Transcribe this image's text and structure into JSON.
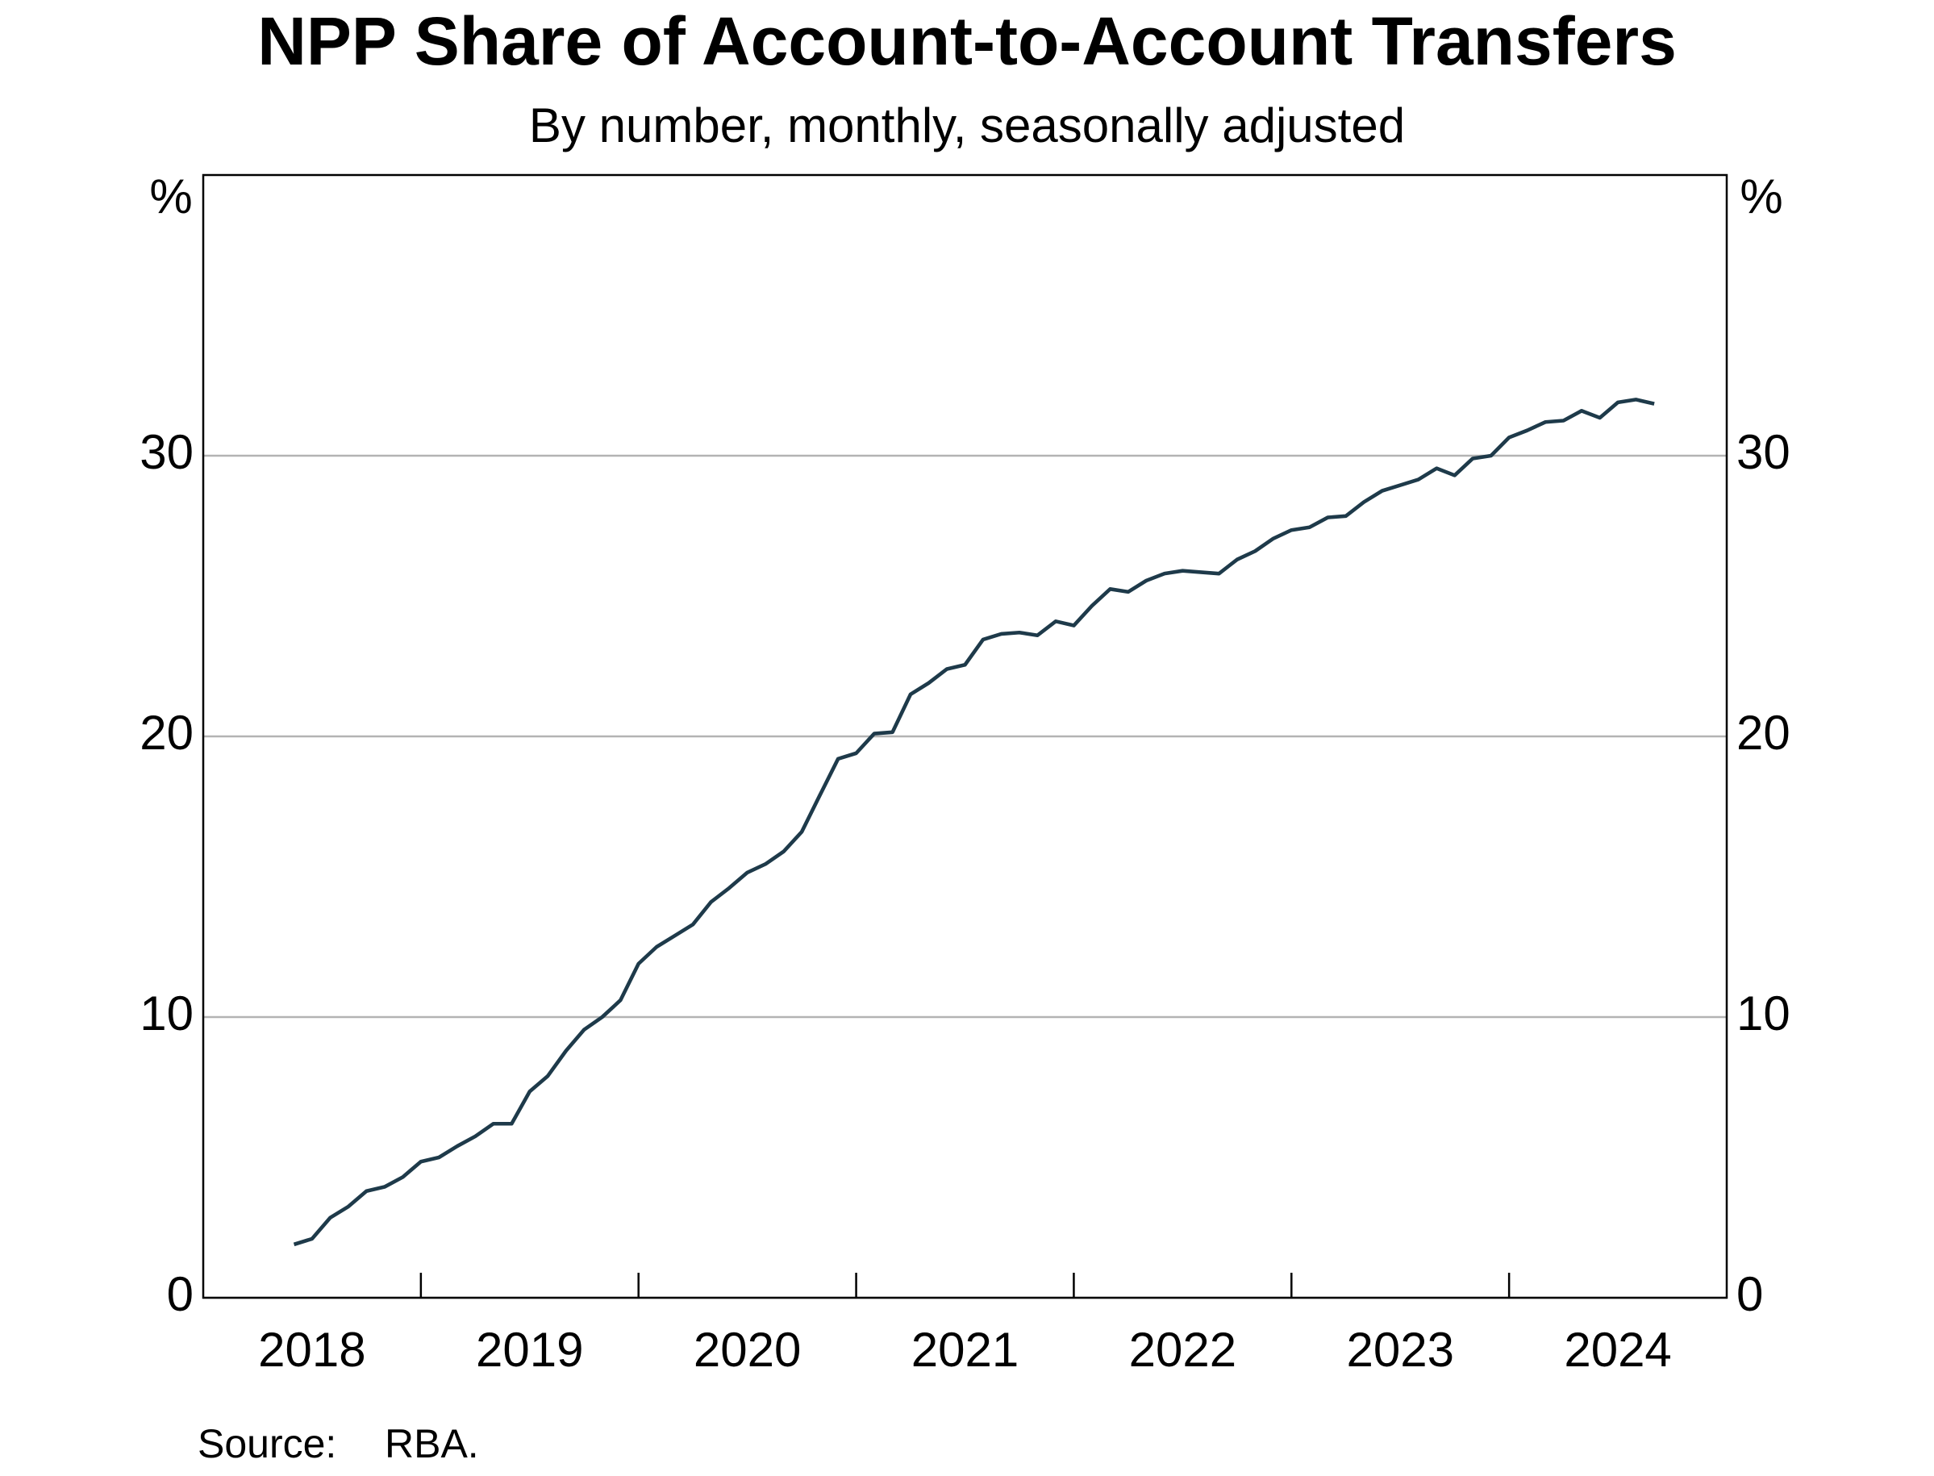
{
  "chart_data": {
    "type": "line",
    "title": "NPP Share of Account-to-Account Transfers",
    "subtitle": "By number, monthly, seasonally adjusted",
    "y_unit": "%",
    "y2_unit": "%",
    "source_label": "Source:",
    "source": "RBA.",
    "xlim": [
      2018,
      2025
    ],
    "xtick_marks": [
      2019,
      2020,
      2021,
      2022,
      2023,
      2024
    ],
    "xticks": [
      {
        "value": 2018.5,
        "label": "2018"
      },
      {
        "value": 2019.5,
        "label": "2019"
      },
      {
        "value": 2020.5,
        "label": "2020"
      },
      {
        "value": 2021.5,
        "label": "2021"
      },
      {
        "value": 2022.5,
        "label": "2022"
      },
      {
        "value": 2023.5,
        "label": "2023"
      },
      {
        "value": 2024.5,
        "label": "2024"
      }
    ],
    "ylim": [
      0,
      40
    ],
    "yticks": [
      0,
      10,
      20,
      30
    ],
    "y2lim": [
      0,
      40
    ],
    "y2ticks": [
      0,
      10,
      20,
      30
    ],
    "grid": true,
    "x": [
      2018.417,
      2018.5,
      2018.583,
      2018.667,
      2018.75,
      2018.833,
      2018.917,
      2019.0,
      2019.083,
      2019.167,
      2019.25,
      2019.333,
      2019.417,
      2019.5,
      2019.583,
      2019.667,
      2019.75,
      2019.833,
      2019.917,
      2020.0,
      2020.083,
      2020.167,
      2020.25,
      2020.333,
      2020.417,
      2020.5,
      2020.583,
      2020.667,
      2020.75,
      2020.833,
      2020.917,
      2021.0,
      2021.083,
      2021.167,
      2021.25,
      2021.333,
      2021.417,
      2021.5,
      2021.583,
      2021.667,
      2021.75,
      2021.833,
      2021.917,
      2022.0,
      2022.083,
      2022.167,
      2022.25,
      2022.333,
      2022.417,
      2022.5,
      2022.583,
      2022.667,
      2022.75,
      2022.833,
      2022.917,
      2023.0,
      2023.083,
      2023.167,
      2023.25,
      2023.333,
      2023.417,
      2023.5,
      2023.583,
      2023.667,
      2023.75,
      2023.833,
      2023.917,
      2024.0,
      2024.083,
      2024.167,
      2024.25,
      2024.333,
      2024.417,
      2024.5,
      2024.583,
      2024.667
    ],
    "series": [
      {
        "color": "#1e3a4a",
        "values": [
          1.9,
          2.1,
          2.85,
          3.25,
          3.8,
          3.95,
          4.3,
          4.85,
          5.0,
          5.4,
          5.75,
          6.2,
          6.2,
          7.35,
          7.9,
          8.8,
          9.55,
          10.0,
          10.6,
          11.9,
          12.5,
          12.9,
          13.3,
          14.1,
          14.6,
          15.15,
          15.45,
          15.9,
          16.6,
          17.9,
          19.2,
          19.4,
          20.1,
          20.15,
          21.5,
          21.9,
          22.4,
          22.55,
          23.45,
          23.65,
          23.7,
          23.6,
          24.1,
          23.95,
          24.65,
          25.25,
          25.15,
          25.55,
          25.8,
          25.9,
          25.85,
          25.8,
          26.3,
          26.6,
          27.05,
          27.35,
          27.45,
          27.8,
          27.85,
          28.35,
          28.75,
          28.95,
          29.15,
          29.55,
          29.3,
          29.9,
          30.0,
          30.65,
          30.9,
          31.2,
          31.25,
          31.6,
          31.35,
          31.9,
          32.0,
          31.85
        ]
      }
    ]
  }
}
